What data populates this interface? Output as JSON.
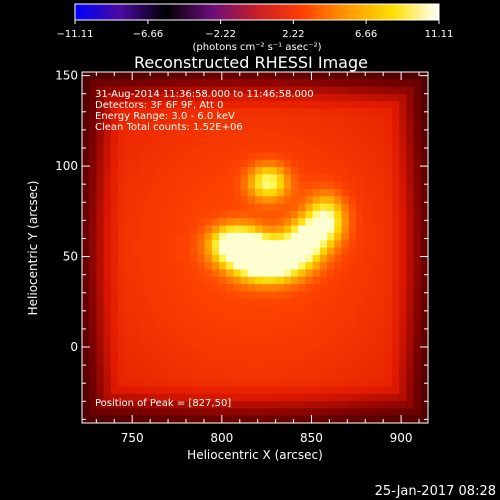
{
  "chart_data": {
    "type": "heatmap",
    "title": "Reconstructed RHESSI Image",
    "xlabel": "Heliocentric X (arcsec)",
    "ylabel": "Heliocentric Y (arcsec)",
    "xlim": [
      722,
      915
    ],
    "ylim": [
      -42,
      152
    ],
    "x_ticks": [
      750,
      800,
      850,
      900
    ],
    "y_ticks": [
      0,
      50,
      100,
      150
    ],
    "colorbar": {
      "range": [
        -11.11,
        11.11
      ],
      "ticks": [
        -11.11,
        -6.66,
        -2.22,
        2.22,
        6.66,
        11.11
      ],
      "tick_labels": [
        "−11.11",
        "−6.66",
        "−2.22",
        "2.22",
        "6.66",
        "11.11"
      ],
      "units": "(photons cm⁻² s⁻¹ asec⁻²)",
      "stops": [
        "#0000ff",
        "#4b0aa0",
        "#000000",
        "#6a0d7a",
        "#c81e28",
        "#ff4000",
        "#ff9a00",
        "#ffe000",
        "#ffffff"
      ]
    },
    "annotations": [
      "31-Aug-2014 11:36:58.000 to 11:46:58.000",
      "Detectors: 3F 6F 9F, Att 0",
      "Energy Range: 3.0 - 6.0 keV",
      "Clean     Total counts: 1.52E+06"
    ],
    "peak_label": "Position of Peak = [827,50]",
    "sources": [
      {
        "x": 826,
        "y": 48,
        "sx": 14,
        "sy": 8,
        "amp": 1.0
      },
      {
        "x": 808,
        "y": 57,
        "sx": 10,
        "sy": 7,
        "amp": 0.75
      },
      {
        "x": 846,
        "y": 59,
        "sx": 8,
        "sy": 8,
        "amp": 0.55
      },
      {
        "x": 858,
        "y": 70,
        "sx": 8,
        "sy": 10,
        "amp": 0.6
      },
      {
        "x": 826,
        "y": 91,
        "sx": 8,
        "sy": 7,
        "amp": 0.55
      }
    ],
    "background_level": 0.25
  },
  "footer": {
    "date": "25-Jan-2017 08:28"
  }
}
